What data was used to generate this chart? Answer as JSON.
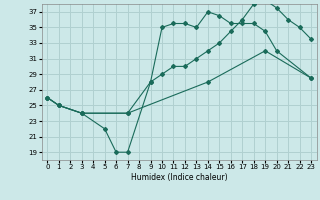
{
  "xlabel": "Humidex (Indice chaleur)",
  "bg_color": "#cce8e8",
  "grid_color": "#b0d0d0",
  "line_color": "#1a6b5a",
  "xlim": [
    -0.5,
    23.5
  ],
  "ylim": [
    18,
    38
  ],
  "yticks": [
    19,
    21,
    23,
    25,
    27,
    29,
    31,
    33,
    35,
    37
  ],
  "xticks": [
    0,
    1,
    2,
    3,
    4,
    5,
    6,
    7,
    8,
    9,
    10,
    11,
    12,
    13,
    14,
    15,
    16,
    17,
    18,
    19,
    20,
    21,
    22,
    23
  ],
  "line1_x": [
    0,
    1,
    3,
    7,
    14,
    19,
    23
  ],
  "line1_y": [
    26,
    25,
    24,
    24,
    28,
    32,
    28.5
  ],
  "line2_x": [
    0,
    1,
    3,
    5,
    6,
    7,
    9,
    10,
    11,
    12,
    13,
    14,
    15,
    16,
    17,
    18,
    19,
    20,
    23
  ],
  "line2_y": [
    26,
    25,
    24,
    22,
    19,
    19,
    28,
    35,
    35.5,
    35.5,
    35,
    37,
    36.5,
    35.5,
    35.5,
    35.5,
    34.5,
    32,
    28.5
  ],
  "line3_x": [
    0,
    1,
    3,
    7,
    9,
    10,
    11,
    12,
    13,
    14,
    15,
    16,
    17,
    18,
    19,
    20,
    21,
    22,
    23
  ],
  "line3_y": [
    26,
    25,
    24,
    24,
    28,
    29,
    30,
    30,
    31,
    32,
    33,
    34.5,
    36,
    38,
    38.5,
    37.5,
    36,
    35,
    33.5
  ]
}
